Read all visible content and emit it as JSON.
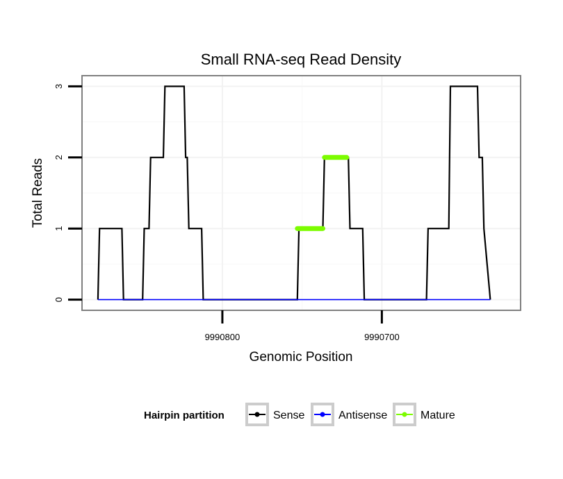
{
  "chart_data": {
    "type": "line",
    "title": "Small RNA-seq Read Density",
    "xlabel": "Genomic Position",
    "ylabel": "Total Reads",
    "x_reversed": true,
    "xlim": [
      9990888,
      9990613
    ],
    "ylim": [
      -0.15,
      3.15
    ],
    "x_ticks": [
      9990800,
      9990700
    ],
    "x_tick_labels": [
      "9990800",
      "9990700"
    ],
    "y_ticks": [
      0,
      1,
      2,
      3
    ],
    "y_tick_labels": [
      "0",
      "1",
      "2",
      "3"
    ],
    "grid": true,
    "legend": {
      "title": "Hairpin partition",
      "position": "bottom",
      "entries": [
        "Sense",
        "Antisense",
        "Mature"
      ]
    },
    "series": [
      {
        "name": "Sense",
        "color": "#000000",
        "x": [
          9990878,
          9990877,
          9990863,
          9990862,
          9990850,
          9990849,
          9990846,
          9990845,
          9990837,
          9990836,
          9990824,
          9990823,
          9990822,
          9990821,
          9990813,
          9990812,
          9990753,
          9990752,
          9990737,
          9990736,
          9990721,
          9990720,
          9990712,
          9990711,
          9990672,
          9990671,
          9990658,
          9990657,
          9990640,
          9990639,
          9990637,
          9990636,
          9990632
        ],
        "y": [
          0,
          1,
          1,
          0,
          0,
          1,
          1,
          2,
          2,
          3,
          3,
          2,
          2,
          1,
          1,
          0,
          0,
          1,
          1,
          2,
          2,
          1,
          1,
          0,
          0,
          1,
          1,
          3,
          3,
          2,
          2,
          1,
          0
        ]
      },
      {
        "name": "Antisense",
        "color": "#0000ff",
        "x": [
          9990878,
          9990632
        ],
        "y": [
          0,
          0
        ]
      },
      {
        "name": "Mature",
        "color": "#7cfc00",
        "segments": [
          {
            "x": [
              9990753,
              9990737
            ],
            "y": [
              1,
              1
            ]
          },
          {
            "x": [
              9990736,
              9990722
            ],
            "y": [
              2,
              2
            ]
          }
        ]
      }
    ]
  }
}
